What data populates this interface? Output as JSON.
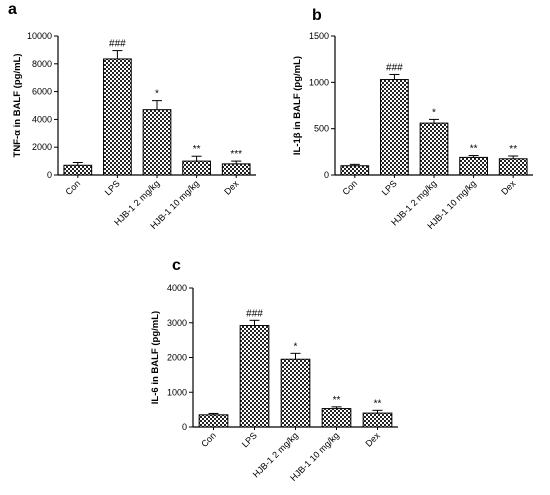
{
  "chart_data": [
    {
      "panel": "a",
      "type": "bar",
      "ylabel": "TNF-α in BALF (pg/mL)",
      "categories": [
        "Con",
        "LPS",
        "HJB-1 2 mg/kg",
        "HJB-1 10 mg/kg",
        "Dex"
      ],
      "values": [
        700,
        8350,
        4700,
        1000,
        800
      ],
      "errors": [
        200,
        600,
        650,
        350,
        200
      ],
      "significance": [
        "",
        "###",
        "*",
        "**",
        "***"
      ],
      "ylim": [
        0,
        10000
      ],
      "yticks": [
        "0",
        "2000",
        "4000",
        "6000",
        "8000",
        "10000"
      ]
    },
    {
      "panel": "b",
      "type": "bar",
      "ylabel": "IL-1β in BALF (pg/mL)",
      "categories": [
        "Con",
        "LPS",
        "HJB-1 2 mg/kg",
        "HJB-1 10 mg/kg",
        "Dex"
      ],
      "values": [
        100,
        1030,
        560,
        190,
        175
      ],
      "errors": [
        15,
        55,
        40,
        20,
        30
      ],
      "significance": [
        "",
        "###",
        "*",
        "**",
        "**"
      ],
      "ylim": [
        0,
        1500
      ],
      "yticks": [
        "0",
        "500",
        "1000",
        "1500"
      ]
    },
    {
      "panel": "c",
      "type": "bar",
      "ylabel": "IL-6 in BALF (pg/mL)",
      "categories": [
        "Con",
        "LPS",
        "HJB-1 2 mg/kg",
        "HJB-1 10 mg/kg",
        "Dex"
      ],
      "values": [
        350,
        2920,
        1950,
        530,
        400
      ],
      "errors": [
        40,
        150,
        170,
        50,
        80
      ],
      "significance": [
        "",
        "###",
        "*",
        "**",
        "**"
      ],
      "ylim": [
        0,
        4000
      ],
      "yticks": [
        "0",
        "1000",
        "2000",
        "3000",
        "4000"
      ]
    }
  ]
}
